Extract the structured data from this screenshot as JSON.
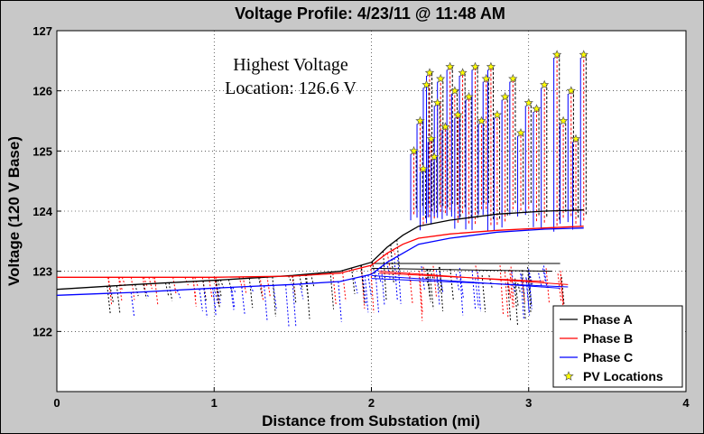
{
  "chart_data": {
    "type": "line",
    "title": "Voltage Profile: 4/23/11 @ 11:48 AM",
    "xlabel": "Distance from Substation (mi)",
    "ylabel": "Voltage (120 V Base)",
    "xlim": [
      0,
      4
    ],
    "ylim": [
      121,
      127
    ],
    "xticks": [
      "0",
      "1",
      "2",
      "3",
      "4"
    ],
    "yticks": [
      "122",
      "123",
      "124",
      "125",
      "126",
      "127"
    ],
    "grid": true,
    "legend_position": "bottom-right",
    "annotation": {
      "line1": "Highest Voltage",
      "line2": "Location: 126.6 V"
    },
    "colors": {
      "phase_a": "#000000",
      "phase_b": "#ff0000",
      "phase_c": "#0000ff",
      "pv_fill": "#ffff00",
      "pv_edge": "#555555"
    },
    "series": [
      {
        "name": "Phase A",
        "x": [
          0,
          0.5,
          1.0,
          1.5,
          1.8,
          2.0,
          2.1,
          2.2,
          2.3,
          2.5,
          2.8,
          3.1,
          3.35
        ],
        "values": [
          122.7,
          122.78,
          122.85,
          122.93,
          123.0,
          123.15,
          123.4,
          123.6,
          123.75,
          123.85,
          123.95,
          124.0,
          124.02
        ]
      },
      {
        "name": "Phase B",
        "x": [
          0,
          0.5,
          1.0,
          1.5,
          1.8,
          2.0,
          2.1,
          2.2,
          2.3,
          2.5,
          2.8,
          3.1,
          3.35
        ],
        "values": [
          122.9,
          122.9,
          122.9,
          122.92,
          122.97,
          123.1,
          123.3,
          123.45,
          123.55,
          123.62,
          123.68,
          123.72,
          123.75
        ]
      },
      {
        "name": "Phase C",
        "x": [
          0,
          0.5,
          1.0,
          1.5,
          1.8,
          2.0,
          2.1,
          2.2,
          2.3,
          2.5,
          2.8,
          3.1,
          3.35
        ],
        "values": [
          122.6,
          122.65,
          122.72,
          122.78,
          122.83,
          122.95,
          123.15,
          123.3,
          123.45,
          123.55,
          123.65,
          123.7,
          123.72
        ]
      },
      {
        "name": "PV Locations",
        "x": [
          2.27,
          2.31,
          2.33,
          2.35,
          2.37,
          2.38,
          2.4,
          2.42,
          2.44,
          2.47,
          2.5,
          2.53,
          2.55,
          2.58,
          2.62,
          2.66,
          2.7,
          2.73,
          2.76,
          2.8,
          2.85,
          2.9,
          2.95,
          3.0,
          3.05,
          3.1,
          3.18,
          3.22,
          3.27,
          3.3,
          3.35
        ],
        "values": [
          125.0,
          125.5,
          124.7,
          126.1,
          126.3,
          125.2,
          124.9,
          125.8,
          126.2,
          125.4,
          126.4,
          126.0,
          125.6,
          126.3,
          125.9,
          126.4,
          125.5,
          126.2,
          126.4,
          125.6,
          125.9,
          126.2,
          125.3,
          125.8,
          125.7,
          126.1,
          126.6,
          125.5,
          126.0,
          125.2,
          126.6
        ]
      }
    ]
  }
}
